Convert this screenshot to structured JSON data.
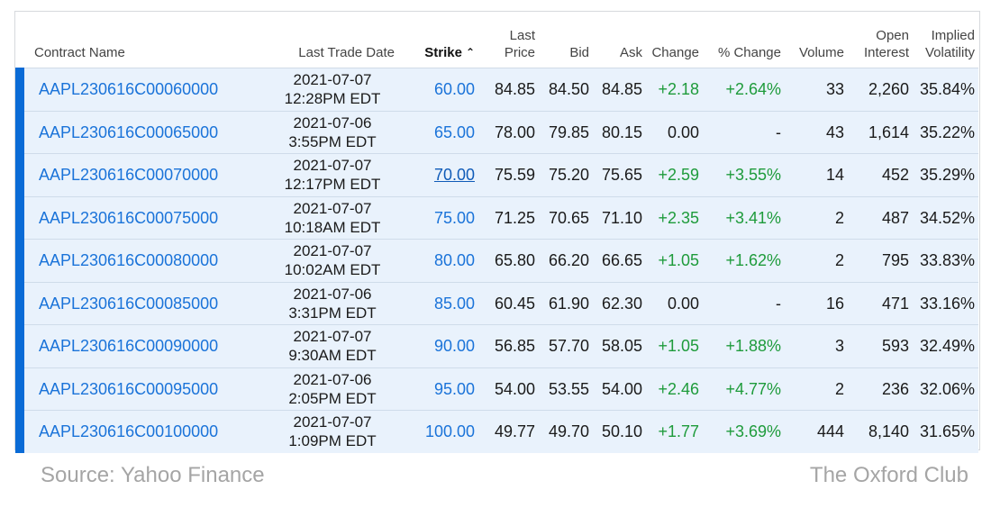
{
  "table": {
    "headers": {
      "contract": "Contract Name",
      "last_trade_date": "Last Trade Date",
      "strike": "Strike",
      "last_price": [
        "Last",
        "Price"
      ],
      "bid": "Bid",
      "ask": "Ask",
      "change": "Change",
      "pct_change": "% Change",
      "volume": "Volume",
      "open_interest": [
        "Open",
        "Interest"
      ],
      "implied_volatility": [
        "Implied",
        "Volatility"
      ]
    },
    "sort_icon": "caret-up-icon",
    "rows": [
      {
        "contract": "AAPL230616C00060000",
        "date": "2021-07-07",
        "time": "12:28PM EDT",
        "strike": "60.00",
        "last": "84.85",
        "bid": "84.50",
        "ask": "84.85",
        "change": "+2.18",
        "pct": "+2.64%",
        "volume": "33",
        "oi": "2,260",
        "iv": "35.84%"
      },
      {
        "contract": "AAPL230616C00065000",
        "date": "2021-07-06",
        "time": "3:55PM EDT",
        "strike": "65.00",
        "last": "78.00",
        "bid": "79.85",
        "ask": "80.15",
        "change": "0.00",
        "pct": "-",
        "volume": "43",
        "oi": "1,614",
        "iv": "35.22%"
      },
      {
        "contract": "AAPL230616C00070000",
        "date": "2021-07-07",
        "time": "12:17PM EDT",
        "strike": "70.00",
        "last": "75.59",
        "bid": "75.20",
        "ask": "75.65",
        "change": "+2.59",
        "pct": "+3.55%",
        "volume": "14",
        "oi": "452",
        "iv": "35.29%"
      },
      {
        "contract": "AAPL230616C00075000",
        "date": "2021-07-07",
        "time": "10:18AM EDT",
        "strike": "75.00",
        "last": "71.25",
        "bid": "70.65",
        "ask": "71.10",
        "change": "+2.35",
        "pct": "+3.41%",
        "volume": "2",
        "oi": "487",
        "iv": "34.52%"
      },
      {
        "contract": "AAPL230616C00080000",
        "date": "2021-07-07",
        "time": "10:02AM EDT",
        "strike": "80.00",
        "last": "65.80",
        "bid": "66.20",
        "ask": "66.65",
        "change": "+1.05",
        "pct": "+1.62%",
        "volume": "2",
        "oi": "795",
        "iv": "33.83%"
      },
      {
        "contract": "AAPL230616C00085000",
        "date": "2021-07-06",
        "time": "3:31PM EDT",
        "strike": "85.00",
        "last": "60.45",
        "bid": "61.90",
        "ask": "62.30",
        "change": "0.00",
        "pct": "-",
        "volume": "16",
        "oi": "471",
        "iv": "33.16%"
      },
      {
        "contract": "AAPL230616C00090000",
        "date": "2021-07-07",
        "time": "9:30AM EDT",
        "strike": "90.00",
        "last": "56.85",
        "bid": "57.70",
        "ask": "58.05",
        "change": "+1.05",
        "pct": "+1.88%",
        "volume": "3",
        "oi": "593",
        "iv": "32.49%"
      },
      {
        "contract": "AAPL230616C00095000",
        "date": "2021-07-06",
        "time": "2:05PM EDT",
        "strike": "95.00",
        "last": "54.00",
        "bid": "53.55",
        "ask": "54.00",
        "change": "+2.46",
        "pct": "+4.77%",
        "volume": "2",
        "oi": "236",
        "iv": "32.06%"
      },
      {
        "contract": "AAPL230616C00100000",
        "date": "2021-07-07",
        "time": "1:09PM EDT",
        "strike": "100.00",
        "last": "49.77",
        "bid": "49.70",
        "ask": "50.10",
        "change": "+1.77",
        "pct": "+3.69%",
        "volume": "444",
        "oi": "8,140",
        "iv": "31.65%"
      }
    ],
    "hovered_strike": "70.00",
    "colors": {
      "positive": "#1e9b3b",
      "link": "#1a73d9",
      "row_bg": "#e9f2fc",
      "in_money_bar": "#0a6bd6"
    }
  },
  "footer": {
    "source": "Source: Yahoo Finance",
    "brand": "The Oxford Club"
  }
}
